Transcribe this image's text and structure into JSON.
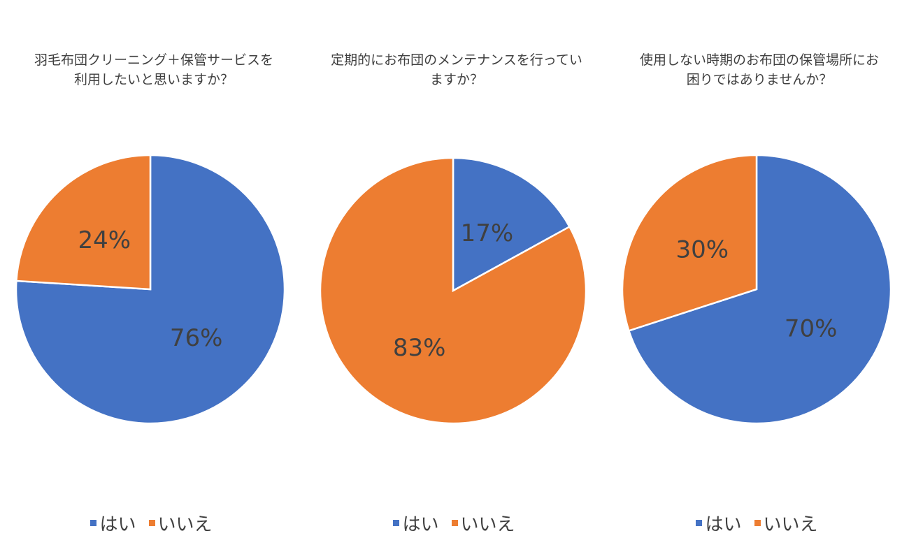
{
  "chart_data": [
    {
      "type": "pie",
      "title": "羽毛布団クリーニング＋保管サービスを利用したいと思いますか？",
      "categories": [
        "はい",
        "いいえ"
      ],
      "values": [
        76,
        24
      ],
      "value_labels": [
        "76%",
        "24%"
      ],
      "colors": [
        "#4472C4",
        "#ED7D31"
      ],
      "legend": "bottom"
    },
    {
      "type": "pie",
      "title": "定期的にお布団のメンテナンスを行っていますか？",
      "categories": [
        "はい",
        "いいえ"
      ],
      "values": [
        17,
        83
      ],
      "value_labels": [
        "17%",
        "83%"
      ],
      "colors": [
        "#4472C4",
        "#ED7D31"
      ],
      "legend": "bottom"
    },
    {
      "type": "pie",
      "title": "使用しない時期のお布団の保管場所にお困りではありませんか？",
      "categories": [
        "はい",
        "いいえ"
      ],
      "values": [
        70,
        30
      ],
      "value_labels": [
        "70%",
        "30%"
      ],
      "colors": [
        "#4472C4",
        "#ED7D31"
      ],
      "legend": "bottom"
    }
  ]
}
